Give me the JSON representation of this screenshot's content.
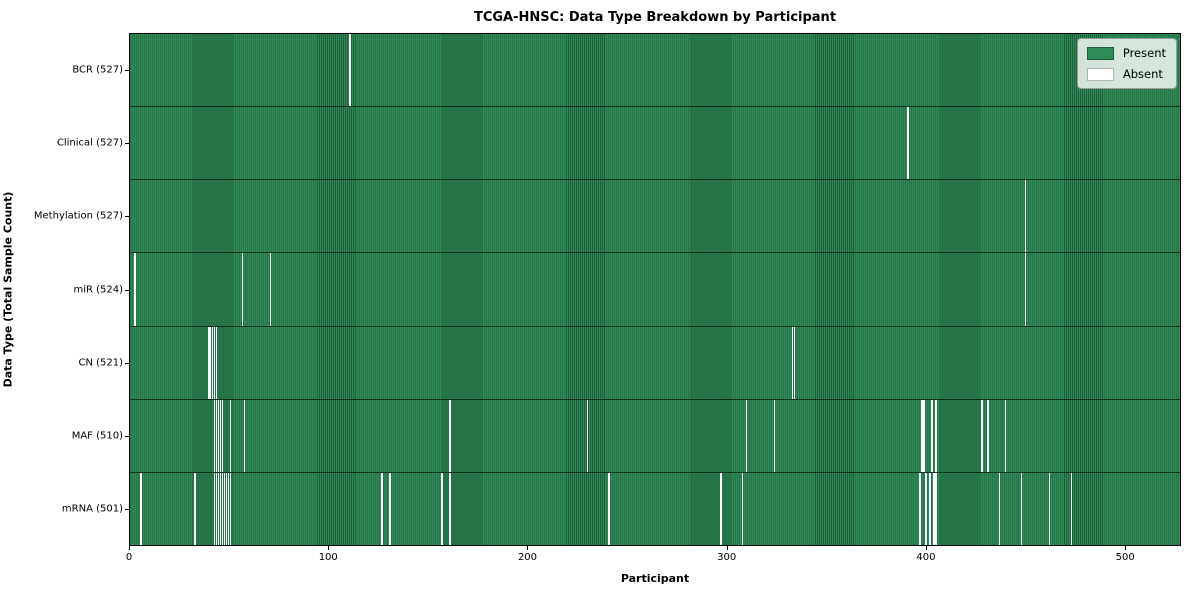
{
  "title": "TCGA-HNSC: Data Type Breakdown by Participant",
  "xlabel": "Participant",
  "ylabel": "Data Type (Total Sample Count)",
  "legend": {
    "present_label": "Present",
    "absent_label": "Absent"
  },
  "colors": {
    "present": "#2e8b57",
    "present_edge": "#1f5f3b",
    "absent": "#ffffff",
    "row_divider": "#10301f",
    "legend_border": "#9a9a9a"
  },
  "chart_data": {
    "type": "heatmap",
    "title": "TCGA-HNSC: Data Type Breakdown by Participant",
    "xlabel": "Participant",
    "ylabel": "Data Type (Total Sample Count)",
    "legend_entries": [
      "Present",
      "Absent"
    ],
    "legend_position": "upper right",
    "x_ticks": [
      0,
      100,
      200,
      300,
      400,
      500
    ],
    "xlim": [
      0,
      528
    ],
    "n_participants": 528,
    "rows": [
      {
        "name": "BCR",
        "label": "BCR (527)",
        "present_count": 527,
        "absent": [
          110
        ]
      },
      {
        "name": "Clinical",
        "label": "Clinical (527)",
        "present_count": 527,
        "absent": [
          390
        ]
      },
      {
        "name": "Methylation",
        "label": "Methylation (527)",
        "present_count": 527,
        "absent": [
          449
        ]
      },
      {
        "name": "miR",
        "label": "miR (524)",
        "present_count": 524,
        "absent": [
          2,
          56,
          70,
          449
        ]
      },
      {
        "name": "CN",
        "label": "CN (521)",
        "present_count": 521,
        "absent": [
          39,
          40,
          41,
          42,
          43,
          332,
          333
        ]
      },
      {
        "name": "MAF",
        "label": "MAF (510)",
        "present_count": 510,
        "absent": [
          42,
          43,
          44,
          45,
          46,
          50,
          57,
          160,
          229,
          309,
          323,
          397,
          398,
          402,
          404,
          427,
          430,
          439
        ]
      },
      {
        "name": "mRNA",
        "label": "mRNA (501)",
        "present_count": 501,
        "absent": [
          5,
          32,
          42,
          43,
          44,
          45,
          46,
          47,
          48,
          49,
          50,
          126,
          130,
          156,
          160,
          240,
          296,
          307,
          396,
          399,
          401,
          403,
          404,
          436,
          447,
          461,
          472
        ]
      }
    ]
  }
}
